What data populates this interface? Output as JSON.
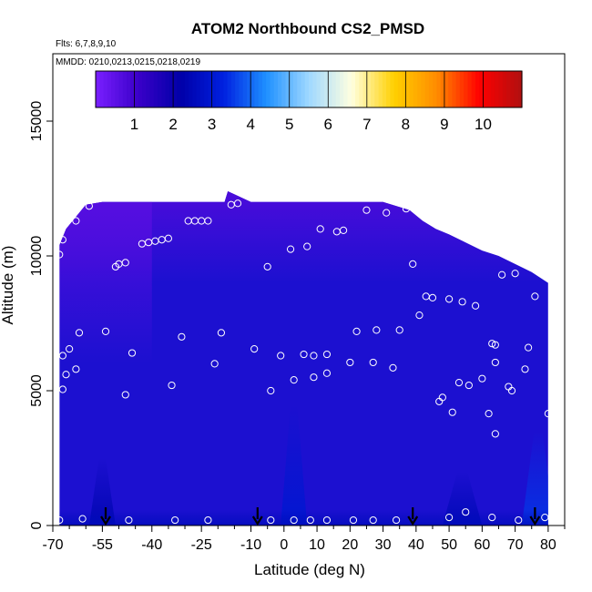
{
  "chart_data": {
    "type": "heatmap",
    "title": "ATOM2 Northbound CS2_PMSD",
    "flights_label": "Flts: 6,7,8,9,10",
    "dates_label": "MMDD: 0210,0213,0215,0218,0219",
    "xlabel": "Latitude (deg N)",
    "ylabel": "Altitude (m)",
    "xlim": [
      -70,
      85
    ],
    "ylim": [
      0,
      17500
    ],
    "x_ticks": [
      -70,
      -55,
      -40,
      -25,
      -10,
      0,
      10,
      20,
      30,
      40,
      50,
      60,
      70,
      80
    ],
    "x_tick_labels": [
      "-70",
      "-55",
      "-40",
      "-25",
      "-10",
      "0",
      "10",
      "20",
      "30",
      "40",
      "50",
      "60",
      "70",
      "80"
    ],
    "x_minor_ticks": [
      -65,
      -60,
      -50,
      -45,
      -35,
      -30,
      -20,
      -15,
      -5,
      5,
      15,
      25,
      35,
      45,
      55,
      65,
      75,
      85
    ],
    "y_ticks": [
      0,
      5000,
      10000,
      15000
    ],
    "y_tick_labels": [
      "0",
      "5000",
      "10000",
      "15000"
    ],
    "colorbar": {
      "range": [
        0,
        11
      ],
      "ticks": [
        1,
        2,
        3,
        4,
        5,
        6,
        7,
        8,
        9,
        10
      ],
      "tick_labels": [
        "1",
        "2",
        "3",
        "4",
        "5",
        "6",
        "7",
        "8",
        "9",
        "10"
      ],
      "colors": [
        "#7a1fff",
        "#3a00c8",
        "#0000a8",
        "#0020e0",
        "#1e90ff",
        "#9fd8ff",
        "#ffffe0",
        "#ffd000",
        "#ff8c00",
        "#ff0000",
        "#b01010"
      ]
    },
    "field_base_color": "#1c10d0",
    "top_envelope": [
      [
        -68,
        10400
      ],
      [
        -67,
        10700
      ],
      [
        -66,
        11000
      ],
      [
        -64,
        11300
      ],
      [
        -62,
        11600
      ],
      [
        -60,
        11900
      ],
      [
        -55,
        12000
      ],
      [
        -45,
        12000
      ],
      [
        -35,
        12000
      ],
      [
        -25,
        12000
      ],
      [
        -18,
        12000
      ],
      [
        -17,
        12400
      ],
      [
        -10,
        12000
      ],
      [
        0,
        12000
      ],
      [
        10,
        12000
      ],
      [
        20,
        12000
      ],
      [
        30,
        12000
      ],
      [
        38,
        11700
      ],
      [
        42,
        11300
      ],
      [
        46,
        11000
      ],
      [
        50,
        10800
      ],
      [
        55,
        10500
      ],
      [
        60,
        10200
      ],
      [
        65,
        10000
      ],
      [
        70,
        9700
      ],
      [
        75,
        9400
      ],
      [
        80,
        9000
      ],
      [
        80,
        0
      ]
    ],
    "field_x_range": [
      -68,
      80
    ],
    "color_features": [
      {
        "shape": "band",
        "lat0": -68,
        "lat1": 80,
        "alt0": 9000,
        "alt1": 12400,
        "value": 0.7
      },
      {
        "shape": "band",
        "lat0": -68,
        "lat1": -40,
        "alt0": 6000,
        "alt1": 12000,
        "value": 0.6
      },
      {
        "shape": "plume",
        "lat": 3,
        "width": 4,
        "alt0": 0,
        "alt1": 4500,
        "value": 3.0
      },
      {
        "shape": "plume",
        "lat": 77,
        "width": 5,
        "alt0": 0,
        "alt1": 3500,
        "value": 3.5
      },
      {
        "shape": "plume",
        "lat": -55,
        "width": 4,
        "alt0": 0,
        "alt1": 2500,
        "value": 2.4
      },
      {
        "shape": "plume",
        "lat": 54,
        "width": 6,
        "alt0": 0,
        "alt1": 2000,
        "value": 2.5
      },
      {
        "shape": "band",
        "lat0": -68,
        "lat1": 80,
        "alt0": 0,
        "alt1": 600,
        "value": 2.6
      }
    ],
    "arrows_lat": [
      -54,
      -8,
      39,
      76
    ],
    "sample_points": [
      [
        -68,
        10050
      ],
      [
        -67,
        10600
      ],
      [
        -63,
        11300
      ],
      [
        -59,
        11850
      ],
      [
        -67,
        6300
      ],
      [
        -66,
        5600
      ],
      [
        -65,
        6550
      ],
      [
        -63,
        5800
      ],
      [
        -62,
        7150
      ],
      [
        -67,
        5050
      ],
      [
        -54,
        7200
      ],
      [
        -51,
        9600
      ],
      [
        -50,
        9700
      ],
      [
        -48,
        9750
      ],
      [
        -46,
        6400
      ],
      [
        -48,
        4850
      ],
      [
        -43,
        10450
      ],
      [
        -41,
        10500
      ],
      [
        -39,
        10550
      ],
      [
        -37,
        10600
      ],
      [
        -35,
        10650
      ],
      [
        -34,
        5200
      ],
      [
        -31,
        7000
      ],
      [
        -29,
        11300
      ],
      [
        -27,
        11300
      ],
      [
        -25,
        11300
      ],
      [
        -23,
        11300
      ],
      [
        -21,
        6000
      ],
      [
        -19,
        7150
      ],
      [
        -16,
        11900
      ],
      [
        -14,
        11950
      ],
      [
        -9,
        6550
      ],
      [
        -5,
        9600
      ],
      [
        -4,
        5000
      ],
      [
        -1,
        6300
      ],
      [
        2,
        10250
      ],
      [
        3,
        5400
      ],
      [
        6,
        6350
      ],
      [
        7,
        10350
      ],
      [
        9,
        5500
      ],
      [
        9,
        6300
      ],
      [
        11,
        11000
      ],
      [
        13,
        6350
      ],
      [
        13,
        5650
      ],
      [
        16,
        10900
      ],
      [
        18,
        10950
      ],
      [
        20,
        6050
      ],
      [
        22,
        7200
      ],
      [
        25,
        11700
      ],
      [
        27,
        6050
      ],
      [
        28,
        7250
      ],
      [
        31,
        11600
      ],
      [
        33,
        5850
      ],
      [
        35,
        7250
      ],
      [
        37,
        11750
      ],
      [
        39,
        9700
      ],
      [
        41,
        7800
      ],
      [
        43,
        8500
      ],
      [
        45,
        8450
      ],
      [
        47,
        4600
      ],
      [
        48,
        4750
      ],
      [
        50,
        8400
      ],
      [
        51,
        4200
      ],
      [
        53,
        5300
      ],
      [
        54,
        8300
      ],
      [
        56,
        5200
      ],
      [
        58,
        8150
      ],
      [
        60,
        5450
      ],
      [
        62,
        4150
      ],
      [
        63,
        6750
      ],
      [
        64,
        6700
      ],
      [
        64,
        6050
      ],
      [
        64,
        3400
      ],
      [
        66,
        9300
      ],
      [
        68,
        5150
      ],
      [
        69,
        5000
      ],
      [
        70,
        9350
      ],
      [
        73,
        5800
      ],
      [
        74,
        6600
      ],
      [
        76,
        8500
      ],
      [
        80,
        4150
      ],
      [
        -68,
        200
      ],
      [
        -61,
        250
      ],
      [
        -47,
        200
      ],
      [
        -33,
        200
      ],
      [
        -23,
        200
      ],
      [
        -4,
        200
      ],
      [
        3,
        200
      ],
      [
        8,
        200
      ],
      [
        13,
        200
      ],
      [
        21,
        200
      ],
      [
        27,
        200
      ],
      [
        34,
        200
      ],
      [
        50,
        300
      ],
      [
        55,
        500
      ],
      [
        63,
        300
      ],
      [
        71,
        200
      ],
      [
        79,
        300
      ]
    ]
  }
}
